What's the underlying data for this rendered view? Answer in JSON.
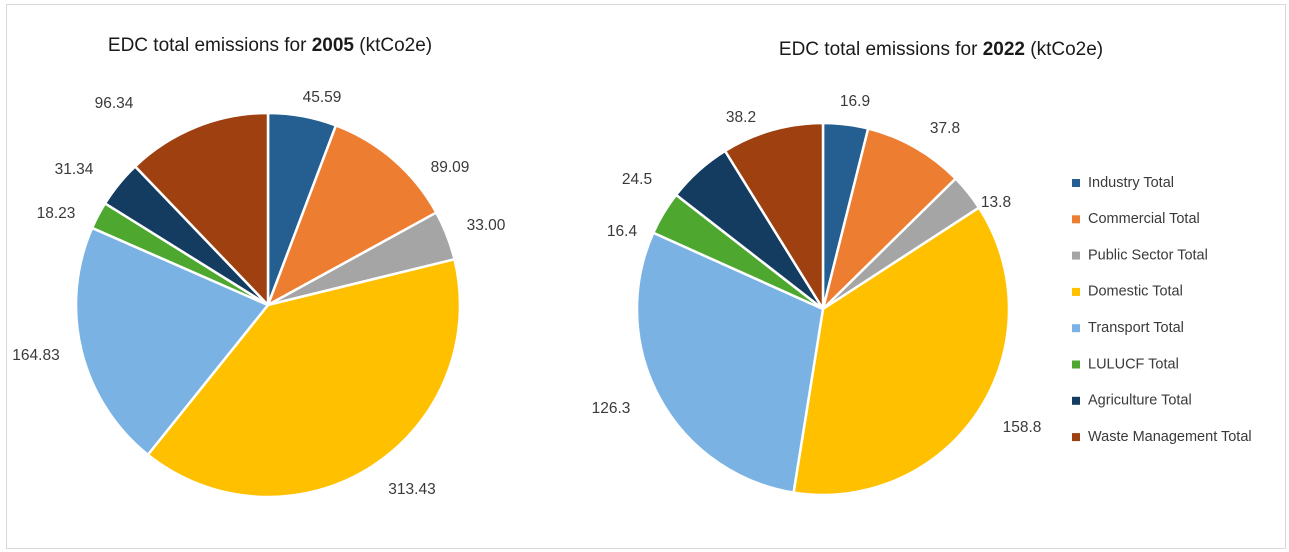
{
  "chart_data": [
    {
      "type": "pie",
      "title_prefix": "EDC total emissions for ",
      "title_year": "2005",
      "title_suffix": " (ktCo2e)",
      "categories": [
        "Industry Total",
        "Commercial Total",
        "Public Sector Total",
        "Domestic  Total",
        "Transport Total",
        "LULUCF Total",
        "Agriculture Total",
        "Waste Management Total"
      ],
      "values": [
        45.59,
        89.09,
        33.0,
        313.43,
        164.83,
        18.23,
        31.34,
        96.34
      ],
      "labels": [
        "45.59",
        "89.09",
        "33.00",
        "313.43",
        "164.83",
        "18.23",
        "31.34",
        "96.34"
      ]
    },
    {
      "type": "pie",
      "title_prefix": "EDC total emissions for ",
      "title_year": "2022",
      "title_suffix": " (ktCo2e)",
      "categories": [
        "Industry Total",
        "Commercial Total",
        "Public Sector Total",
        "Domestic  Total",
        "Transport Total",
        "LULUCF Total",
        "Agriculture Total",
        "Waste Management Total"
      ],
      "values": [
        16.9,
        37.8,
        13.8,
        158.8,
        126.3,
        16.4,
        24.5,
        38.2
      ],
      "labels": [
        "16.9",
        "37.8",
        "13.8",
        "158.8",
        "126.3",
        "16.4",
        "24.5",
        "38.2"
      ]
    }
  ],
  "legend": {
    "position": "right",
    "items": [
      {
        "label": "Industry Total",
        "color": "#255e91"
      },
      {
        "label": "Commercial Total",
        "color": "#ed7d31"
      },
      {
        "label": "Public Sector Total",
        "color": "#a5a5a5"
      },
      {
        "label": "Domestic  Total",
        "color": "#ffc000"
      },
      {
        "label": "Transport Total",
        "color": "#7ab3e3"
      },
      {
        "label": "LULUCF Total",
        "color": "#4ea72e"
      },
      {
        "label": "Agriculture Total",
        "color": "#143c61"
      },
      {
        "label": "Waste Management Total",
        "color": "#9e4010"
      }
    ]
  }
}
